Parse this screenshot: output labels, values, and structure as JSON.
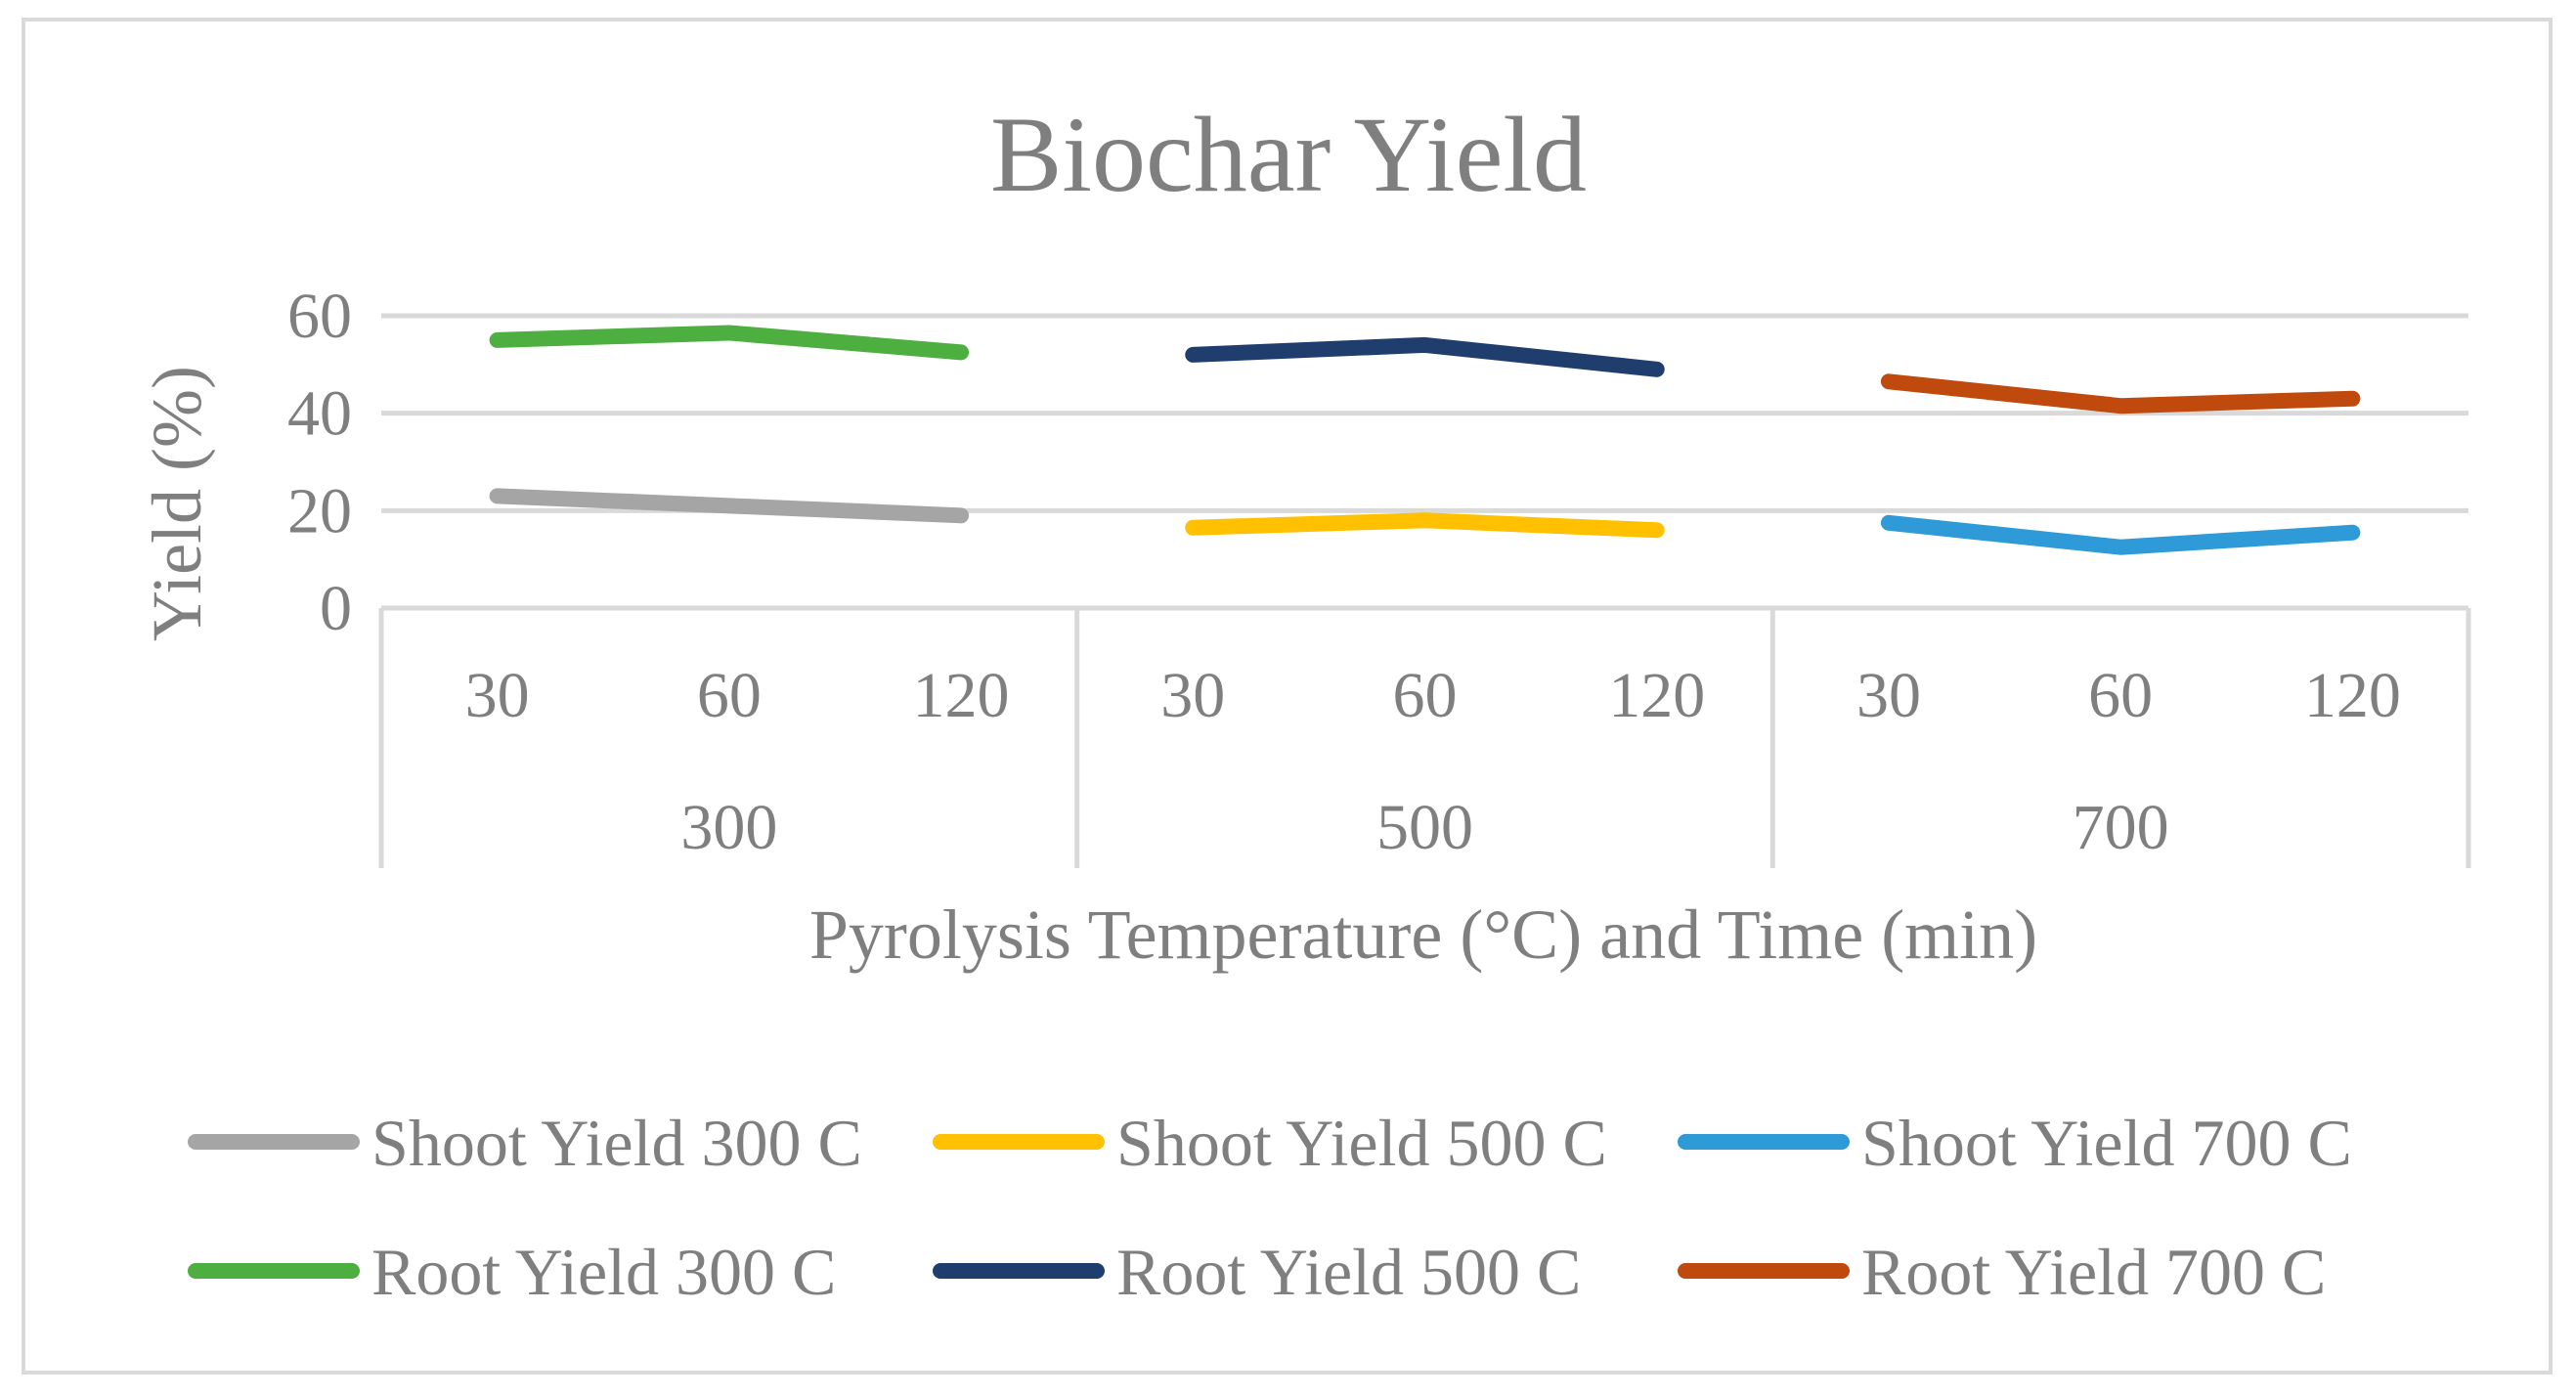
{
  "chart_data": {
    "type": "line",
    "title": "Biochar Yield",
    "xlabel": "Pyrolysis Temperature (°C) and Time (min)",
    "ylabel": "Yield (%)",
    "ylim": [
      0,
      60
    ],
    "yticks": [
      0,
      20,
      40,
      60
    ],
    "grid": true,
    "legend_position": "bottom",
    "groups": [
      {
        "label": "300",
        "categories": [
          "30",
          "60",
          "120"
        ]
      },
      {
        "label": "500",
        "categories": [
          "30",
          "60",
          "120"
        ]
      },
      {
        "label": "700",
        "categories": [
          "30",
          "60",
          "120"
        ]
      }
    ],
    "series": [
      {
        "name": "Shoot Yield 300 C",
        "color": "#a5a5a5",
        "group": 0,
        "values": [
          23,
          21,
          19
        ]
      },
      {
        "name": "Shoot Yield 500 C",
        "color": "#ffc000",
        "group": 1,
        "values": [
          16.5,
          18,
          16
        ]
      },
      {
        "name": "Shoot Yield 700 C",
        "color": "#2e9bd8",
        "group": 2,
        "values": [
          17.5,
          12.5,
          15.5
        ]
      },
      {
        "name": "Root Yield 300 C",
        "color": "#4caf3f",
        "group": 0,
        "values": [
          55,
          56.5,
          52.5
        ]
      },
      {
        "name": "Root Yield 500 C",
        "color": "#1f3e6e",
        "group": 1,
        "values": [
          52,
          54,
          49
        ]
      },
      {
        "name": "Root Yield 700 C",
        "color": "#c0490e",
        "group": 2,
        "values": [
          46.5,
          41.5,
          43
        ]
      }
    ]
  }
}
